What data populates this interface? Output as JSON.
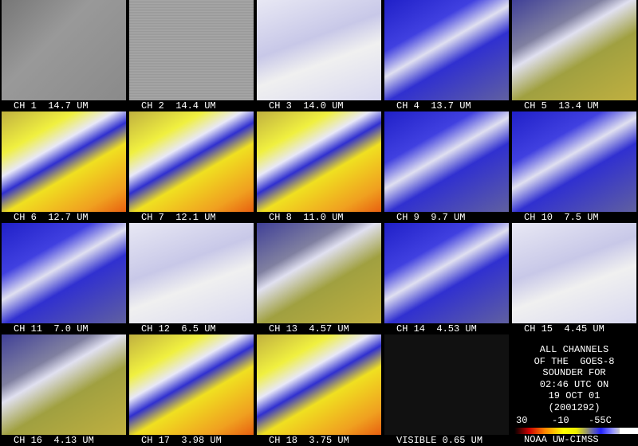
{
  "panels": [
    {
      "label": "CH 1  14.7 UM"
    },
    {
      "label": "CH 2  14.4 UM"
    },
    {
      "label": "CH 3  14.0 UM"
    },
    {
      "label": "CH 4  13.7 UM"
    },
    {
      "label": "CH 5  13.4 UM"
    },
    {
      "label": "CH 6  12.7 UM"
    },
    {
      "label": "CH 7  12.1 UM"
    },
    {
      "label": "CH 8  11.0 UM"
    },
    {
      "label": "CH 9  9.7 UM"
    },
    {
      "label": "CH 10  7.5 UM"
    },
    {
      "label": "CH 11  7.0 UM"
    },
    {
      "label": "CH 12  6.5 UM"
    },
    {
      "label": "CH 13  4.57 UM"
    },
    {
      "label": "CH 14  4.53 UM"
    },
    {
      "label": "CH 15  4.45 UM"
    },
    {
      "label": "CH 16  4.13 UM"
    },
    {
      "label": "CH 17  3.98 UM"
    },
    {
      "label": "CH 18  3.75 UM"
    },
    {
      "label": "VISIBLE 0.65 UM"
    }
  ],
  "info": {
    "lines": [
      "ALL CHANNELS",
      "OF THE  GOES-8",
      "SOUNDER FOR",
      "02:46 UTC ON",
      "19 OCT 01",
      "(2001292)"
    ]
  },
  "colorbar": {
    "labels": [
      "30",
      "-10",
      "-55C"
    ]
  },
  "credit": "NOAA UW-CIMSS"
}
